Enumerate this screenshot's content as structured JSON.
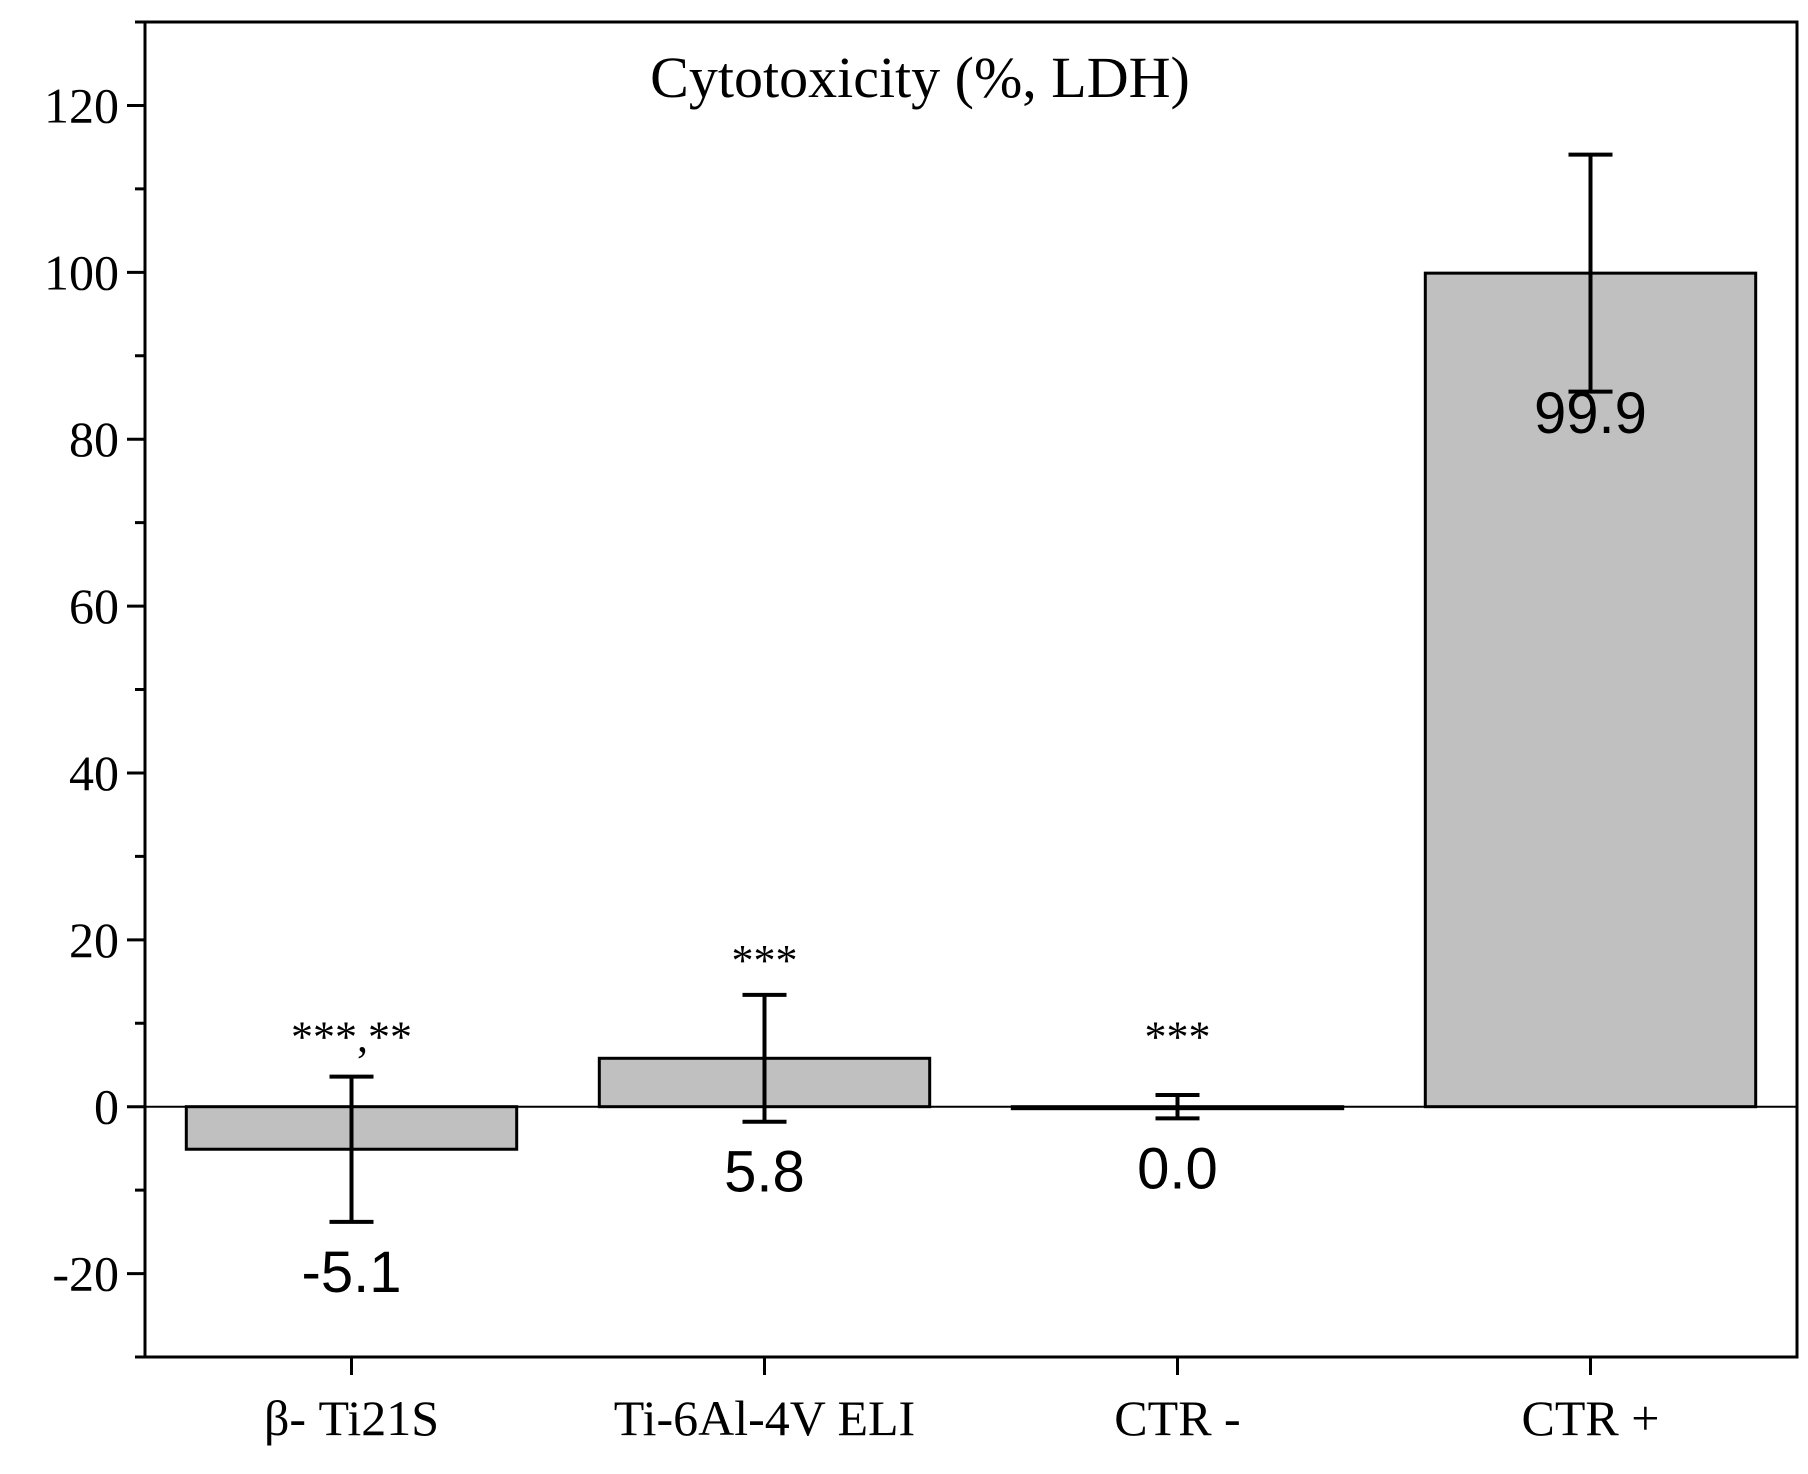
{
  "chart_data": {
    "type": "bar",
    "title": "Cytotoxicity (%, LDH)",
    "xlabel": "",
    "ylabel": "",
    "categories": [
      "β- Ti21S",
      "Ti-6Al-4V ELI",
      "CTR -",
      "CTR +"
    ],
    "values": [
      -5.1,
      5.8,
      0.0,
      99.9
    ],
    "errors": [
      8.7,
      7.6,
      1.4,
      14.2
    ],
    "value_labels": [
      "-5.1",
      "5.8",
      "0.0",
      "99.9"
    ],
    "significance": [
      "***,**",
      "***",
      "***",
      ""
    ],
    "ylim": [
      -30,
      130
    ],
    "yticks": [
      -20,
      0,
      20,
      40,
      60,
      80,
      100,
      120
    ],
    "ytick_labels": [
      "-20",
      "0",
      "20",
      "40",
      "60",
      "80",
      "100",
      "120"
    ],
    "bar_color": "#c0c0c0",
    "grid": false
  }
}
